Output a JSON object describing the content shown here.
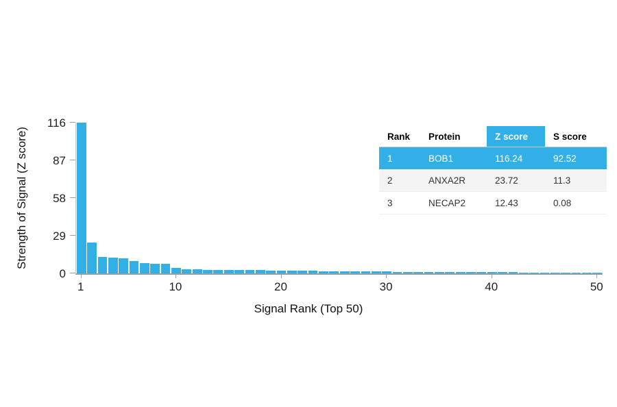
{
  "colors": {
    "accent": "#30b0e6",
    "axis": "#9e9e9e"
  },
  "chart_data": {
    "type": "bar",
    "title": "",
    "xlabel": "Signal Rank (Top 50)",
    "ylabel": "Strength of Signal (Z score)",
    "ylim": [
      0,
      116
    ],
    "yticks": [
      0,
      29,
      58,
      87,
      116
    ],
    "xticks": [
      1,
      10,
      20,
      30,
      40,
      50
    ],
    "x_start": 1,
    "x_end": 50,
    "grid": false,
    "legend": "none",
    "bar_color": "#30b0e6",
    "values": [
      116.24,
      23.72,
      12.43,
      12.1,
      11.8,
      9.3,
      7.9,
      7.6,
      7.3,
      4.4,
      3.3,
      3.1,
      2.9,
      2.8,
      2.7,
      2.6,
      2.5,
      2.4,
      2.3,
      2.2,
      2.1,
      2.0,
      1.9,
      1.8,
      1.7,
      1.6,
      1.5,
      1.5,
      1.4,
      1.4,
      1.3,
      1.3,
      1.2,
      1.2,
      1.1,
      1.1,
      1.0,
      1.0,
      0.9,
      0.9,
      0.8,
      0.8,
      0.7,
      0.7,
      0.6,
      0.6,
      0.5,
      0.5,
      0.4,
      0.4
    ],
    "labeled_points": [
      {
        "rank": 1,
        "protein": "BOB1",
        "z_score": 116.24,
        "s_score": 92.52
      },
      {
        "rank": 2,
        "protein": "ANXA2R",
        "z_score": 23.72,
        "s_score": 11.3
      },
      {
        "rank": 3,
        "protein": "NECAP2",
        "z_score": 12.43,
        "s_score": 0.08
      }
    ]
  },
  "table": {
    "headers": [
      "Rank",
      "Protein",
      "Z score",
      "S score"
    ],
    "highlight_row": 0,
    "rows": [
      [
        "1",
        "BOB1",
        "116.24",
        "92.52"
      ],
      [
        "2",
        "ANXA2R",
        "23.72",
        "11.3"
      ],
      [
        "3",
        "NECAP2",
        "12.43",
        "0.08"
      ]
    ]
  }
}
